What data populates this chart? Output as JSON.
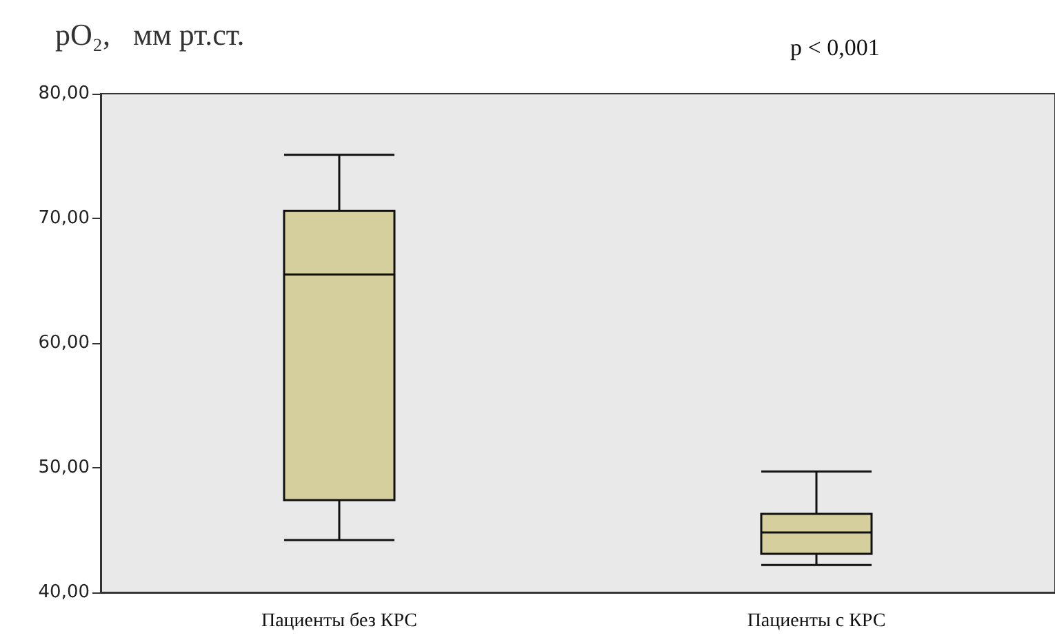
{
  "chart_data": {
    "type": "box",
    "title": "pO₂,   мм рт.ст.",
    "annotations": [
      "p < 0,001"
    ],
    "categories": [
      "Пациенты без КРС",
      "Пациенты с КРС"
    ],
    "color": "#d4cf9c",
    "boxes": [
      {
        "low": 44.2,
        "q1": 47.4,
        "median": 65.5,
        "q3": 70.6,
        "high": 75.1
      },
      {
        "low": 42.2,
        "q1": 43.1,
        "median": 44.8,
        "q3": 46.3,
        "high": 49.7
      }
    ],
    "ylim": [
      40,
      80
    ],
    "yticks": [
      {
        "value": 40,
        "label": "40,00"
      },
      {
        "value": 50,
        "label": "50,00"
      },
      {
        "value": 60,
        "label": "60,00"
      },
      {
        "value": 70,
        "label": "70,00"
      },
      {
        "value": 80,
        "label": "80,00"
      }
    ],
    "grid": false
  }
}
